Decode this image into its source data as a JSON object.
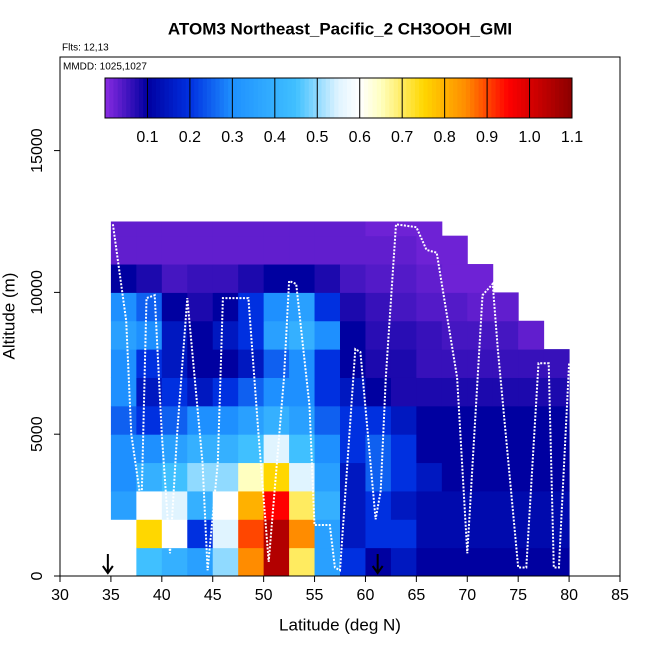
{
  "chart_data": {
    "type": "curtain",
    "title": "ATOM3 Northeast_Pacific_2 CH3OOH_GMI",
    "flights": "Flts: 12,13",
    "dates": "MMDD: 1025,1027",
    "xlabel": "Latitude (deg N)",
    "ylabel": "Altitude (m)",
    "xlim": [
      30,
      85
    ],
    "xticks": [
      30,
      35,
      40,
      45,
      50,
      55,
      60,
      65,
      70,
      75,
      80,
      85
    ],
    "ylim": [
      0,
      18300
    ],
    "yticks": [
      0,
      5000,
      10000,
      15000
    ],
    "lat_edges": [
      35,
      37.5,
      40,
      42.5,
      45,
      47.5,
      50,
      52.5,
      55,
      57.5,
      60,
      62.5,
      65,
      67.5,
      70,
      72.5,
      75,
      77.5,
      80
    ],
    "alt_edges": [
      0,
      1000,
      2000,
      3000,
      4000,
      5000,
      6000,
      7000,
      8000,
      9000,
      10000,
      11000,
      12000,
      12500
    ],
    "values": [
      [
        null,
        0.45,
        0.4,
        0.35,
        0.5,
        0.85,
        1.05,
        0.7,
        0.35,
        0.2,
        0.1,
        0.15,
        0.1,
        0.1,
        0.1,
        0.1,
        0.1,
        0.1
      ],
      [
        null,
        0.75,
        0.6,
        0.2,
        0.55,
        0.9,
        1.05,
        0.85,
        0.35,
        0.15,
        0.2,
        0.2,
        0.12,
        0.12,
        0.12,
        0.12,
        0.12,
        0.12
      ],
      [
        0.35,
        0.6,
        0.55,
        0.4,
        0.6,
        0.8,
        0.95,
        0.7,
        0.4,
        0.15,
        0.2,
        0.15,
        0.12,
        0.12,
        0.12,
        0.12,
        0.12,
        0.12
      ],
      [
        0.3,
        0.4,
        0.45,
        0.5,
        0.5,
        0.65,
        0.75,
        0.55,
        0.35,
        0.15,
        0.25,
        0.2,
        0.15,
        0.1,
        0.1,
        0.1,
        0.1,
        0.1
      ],
      [
        0.3,
        0.3,
        0.35,
        0.4,
        0.4,
        0.45,
        0.55,
        0.45,
        0.3,
        0.2,
        0.25,
        0.2,
        0.1,
        0.1,
        0.1,
        0.1,
        0.1,
        0.1
      ],
      [
        0.25,
        0.2,
        0.25,
        0.3,
        0.3,
        0.35,
        0.4,
        0.35,
        0.25,
        0.2,
        0.2,
        0.15,
        0.1,
        0.1,
        0.1,
        0.1,
        0.1,
        0.1
      ],
      [
        0.3,
        0.15,
        0.2,
        0.15,
        0.2,
        0.25,
        0.3,
        0.3,
        0.2,
        0.15,
        0.1,
        0.08,
        0.08,
        0.08,
        0.08,
        0.08,
        0.08,
        0.08
      ],
      [
        0.3,
        0.2,
        0.15,
        0.1,
        0.1,
        0.15,
        0.25,
        0.3,
        0.2,
        0.1,
        0.08,
        0.08,
        0.06,
        0.06,
        0.06,
        0.06,
        0.06,
        0.06
      ],
      [
        0.35,
        0.3,
        0.15,
        0.1,
        0.15,
        0.2,
        0.35,
        0.4,
        0.3,
        0.1,
        0.07,
        0.07,
        0.06,
        0.05,
        0.05,
        0.05,
        0.03,
        null
      ],
      [
        0.3,
        0.25,
        0.1,
        0.08,
        0.1,
        0.2,
        0.3,
        0.35,
        0.2,
        0.08,
        0.06,
        0.05,
        0.04,
        0.04,
        0.03,
        0.03,
        null,
        null
      ],
      [
        0.1,
        0.08,
        0.05,
        0.06,
        0.06,
        0.08,
        0.1,
        0.1,
        0.08,
        0.05,
        0.04,
        0.04,
        0.03,
        0.02,
        0.02,
        null,
        null,
        null
      ],
      [
        0.03,
        0.03,
        0.03,
        0.03,
        0.03,
        0.03,
        0.03,
        0.03,
        0.03,
        0.03,
        0.03,
        0.03,
        0.02,
        0.02,
        null,
        null,
        null,
        null
      ],
      [
        0.03,
        0.03,
        0.03,
        0.03,
        0.03,
        0.03,
        0.03,
        0.03,
        0.03,
        0.03,
        0.02,
        0.02,
        0.02,
        null,
        null,
        null,
        null,
        null
      ]
    ],
    "clim": [
      0,
      1.1
    ],
    "cticks": [
      0.1,
      0.2,
      0.3,
      0.4,
      0.5,
      0.6,
      0.7,
      0.8,
      0.9,
      1.0,
      1.1
    ],
    "colorscale": [
      [
        0,
        "#8a2be2"
      ],
      [
        0.1,
        "#0000a0"
      ],
      [
        0.2,
        "#0030e0"
      ],
      [
        0.3,
        "#1e90ff"
      ],
      [
        0.45,
        "#40c0ff"
      ],
      [
        0.55,
        "#e0f4ff"
      ],
      [
        0.6,
        "#ffffff"
      ],
      [
        0.65,
        "#ffffc0"
      ],
      [
        0.75,
        "#ffd700"
      ],
      [
        0.85,
        "#ff8c00"
      ],
      [
        0.95,
        "#ff0000"
      ],
      [
        1.1,
        "#8b0000"
      ]
    ],
    "track": {
      "color": "#ffffff",
      "lat": [
        35.2,
        36.5,
        37,
        38,
        38.5,
        39.3,
        40,
        40.8,
        41.5,
        42.5,
        44,
        44.5,
        45.5,
        46,
        48.5,
        49.5,
        50.5,
        52,
        52.5,
        53.2,
        54.5,
        55,
        56.5,
        57,
        57.5,
        59,
        59.5,
        61,
        61.5,
        62,
        63,
        65,
        66,
        67,
        69,
        70,
        71.5,
        72.5,
        73,
        75,
        75.8,
        77,
        78,
        78.5,
        79,
        80
      ],
      "alt": [
        12400,
        9000,
        5000,
        2500,
        9800,
        9900,
        5000,
        800,
        5000,
        9800,
        4000,
        200,
        4000,
        9800,
        9800,
        5000,
        500,
        7000,
        10400,
        10300,
        6000,
        1800,
        1800,
        300,
        200,
        8000,
        7900,
        2000,
        3000,
        7000,
        12400,
        12300,
        11500,
        11400,
        7000,
        800,
        9900,
        10300,
        8000,
        300,
        300,
        7500,
        7500,
        300,
        300,
        7500
      ]
    },
    "arrows": [
      34.7,
      61.2
    ]
  }
}
